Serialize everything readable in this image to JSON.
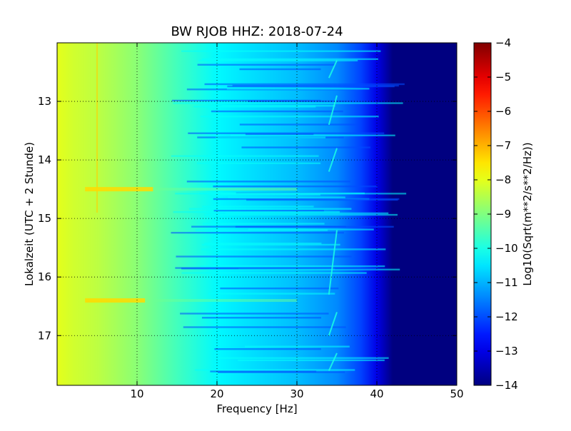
{
  "chart_data": {
    "type": "heatmap",
    "title": "BW RJOB HHZ: 2018-07-24",
    "xlabel": "Frequency [Hz]",
    "ylabel": "Lokalzeit (UTC + 2 Stunde)",
    "xlim": [
      0,
      50
    ],
    "ylim": [
      12.0,
      17.85
    ],
    "y_inverted": true,
    "x_ticks": [
      10,
      20,
      30,
      40,
      50
    ],
    "y_ticks": [
      13,
      14,
      15,
      16,
      17
    ],
    "grid": true,
    "colormap": "jet",
    "colorbar": {
      "label": "Log10(Sqrt(m**2/s**2/Hz))",
      "range": [
        -14,
        -4
      ],
      "ticks": [
        -4,
        -5,
        -6,
        -7,
        -8,
        -9,
        -10,
        -11,
        -12,
        -13,
        -14
      ]
    },
    "spectrum_profile": {
      "frequency_hz": [
        0,
        2,
        5,
        10,
        15,
        20,
        25,
        30,
        35,
        38,
        40,
        42,
        50
      ],
      "log10_amplitude": [
        -8.0,
        -8.2,
        -8.4,
        -8.9,
        -9.6,
        -10.3,
        -10.6,
        -10.9,
        -11.4,
        -12.1,
        -13.0,
        -14.0,
        -14.0
      ]
    },
    "features": {
      "spectral_line_hz": 5,
      "wandering_line_hz": [
        34,
        35
      ],
      "bright_bands_time": [
        14.5,
        16.4
      ]
    }
  },
  "colors": {
    "background": "#ffffff",
    "axes": "#000000",
    "grid": "#000000"
  }
}
